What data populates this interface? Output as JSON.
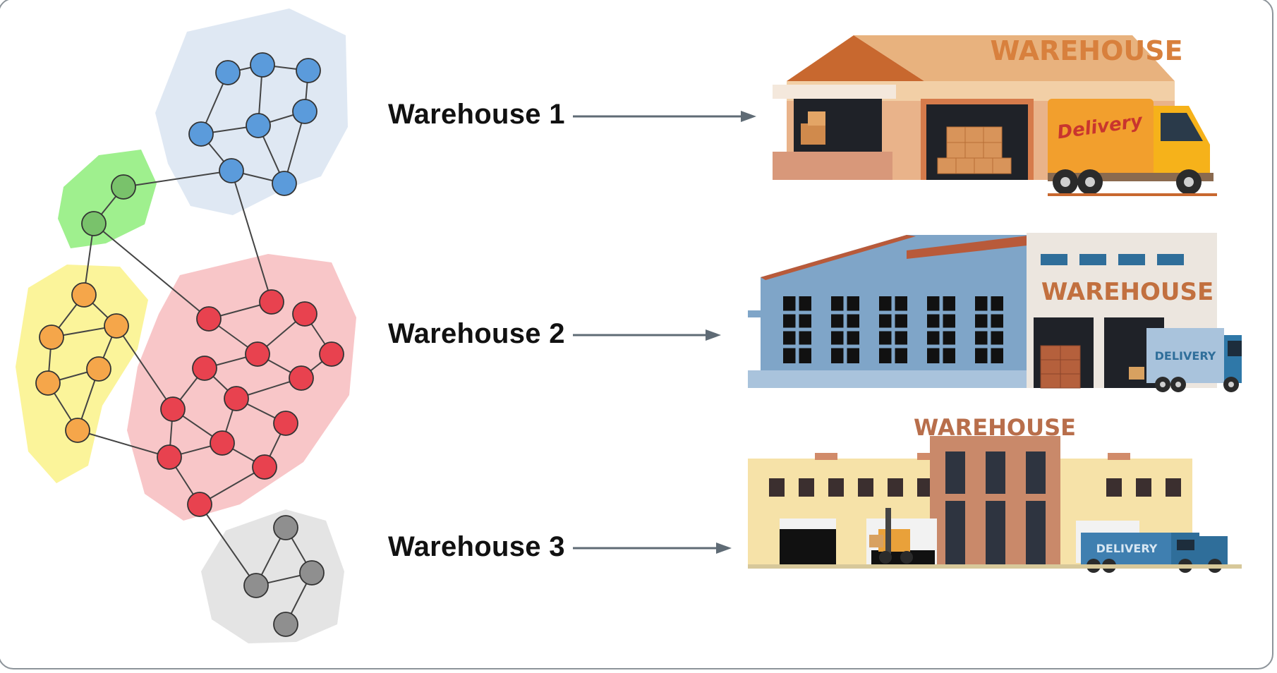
{
  "clusters": [
    {
      "name": "blue",
      "fill": "#dfe8f3",
      "node": "#5b9bdb"
    },
    {
      "name": "green",
      "fill": "#9ff08e",
      "node": "#79c26b"
    },
    {
      "name": "yellow",
      "fill": "#fbf49a",
      "node": "#f5a64a"
    },
    {
      "name": "red",
      "fill": "#f8c6c8",
      "node": "#e8424f"
    },
    {
      "name": "gray",
      "fill": "#e4e4e4",
      "node": "#8f8f8f"
    }
  ],
  "warehouses": [
    {
      "label": "Warehouse 1",
      "sign": "WAREHOUSE",
      "truck_text": "Delivery"
    },
    {
      "label": "Warehouse 2",
      "sign": "WAREHOUSE",
      "truck_text": "DELIVERY"
    },
    {
      "label": "Warehouse 3",
      "sign": "WAREHOUSE",
      "truck_text": "DELIVERY"
    }
  ],
  "colors": {
    "edge": "#444444",
    "arrow": "#5f6b75",
    "frame": "#8d949a"
  }
}
